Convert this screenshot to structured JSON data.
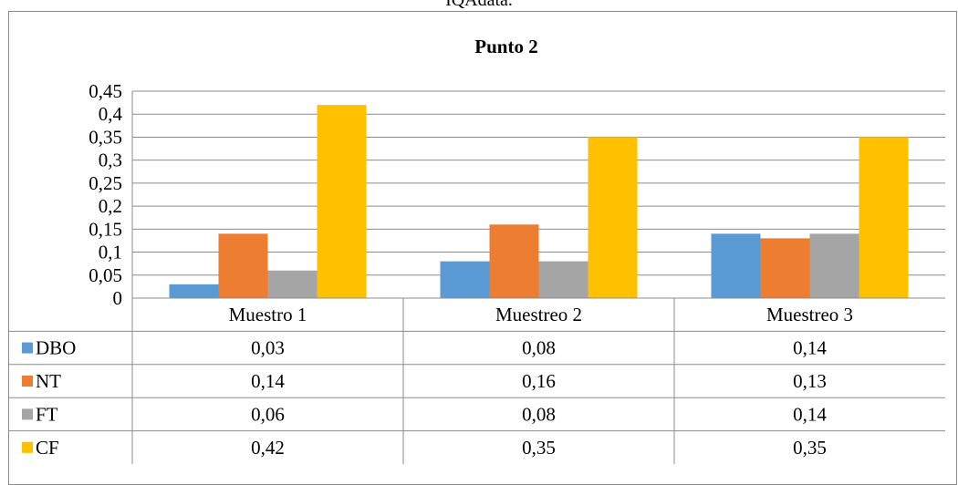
{
  "page_caption": "IQAdata.",
  "chart_data": {
    "type": "bar",
    "title": "Punto 2",
    "categories": [
      "Muestro 1",
      "Muestreo 2",
      "Muestreo 3"
    ],
    "series": [
      {
        "name": "DBO",
        "color": "#5b9bd5",
        "values": [
          0.03,
          0.08,
          0.14
        ],
        "labels": [
          "0,03",
          "0,08",
          "0,14"
        ]
      },
      {
        "name": "NT",
        "color": "#ed7d31",
        "values": [
          0.14,
          0.16,
          0.13
        ],
        "labels": [
          "0,14",
          "0,16",
          "0,13"
        ]
      },
      {
        "name": "FT",
        "color": "#a5a5a5",
        "values": [
          0.06,
          0.08,
          0.14
        ],
        "labels": [
          "0,06",
          "0,08",
          "0,14"
        ]
      },
      {
        "name": "CF",
        "color": "#ffc000",
        "values": [
          0.42,
          0.35,
          0.35
        ],
        "labels": [
          "0,42",
          "0,35",
          "0,35"
        ]
      }
    ],
    "yticks": [
      0,
      0.05,
      0.1,
      0.15,
      0.2,
      0.25,
      0.3,
      0.35,
      0.4,
      0.45
    ],
    "ytick_labels": [
      "0",
      "0,05",
      "0,1",
      "0,15",
      "0,2",
      "0,25",
      "0,3",
      "0,35",
      "0,4",
      "0,45"
    ],
    "ylim": [
      0,
      0.45
    ],
    "grid": true,
    "legend": "data-table"
  }
}
